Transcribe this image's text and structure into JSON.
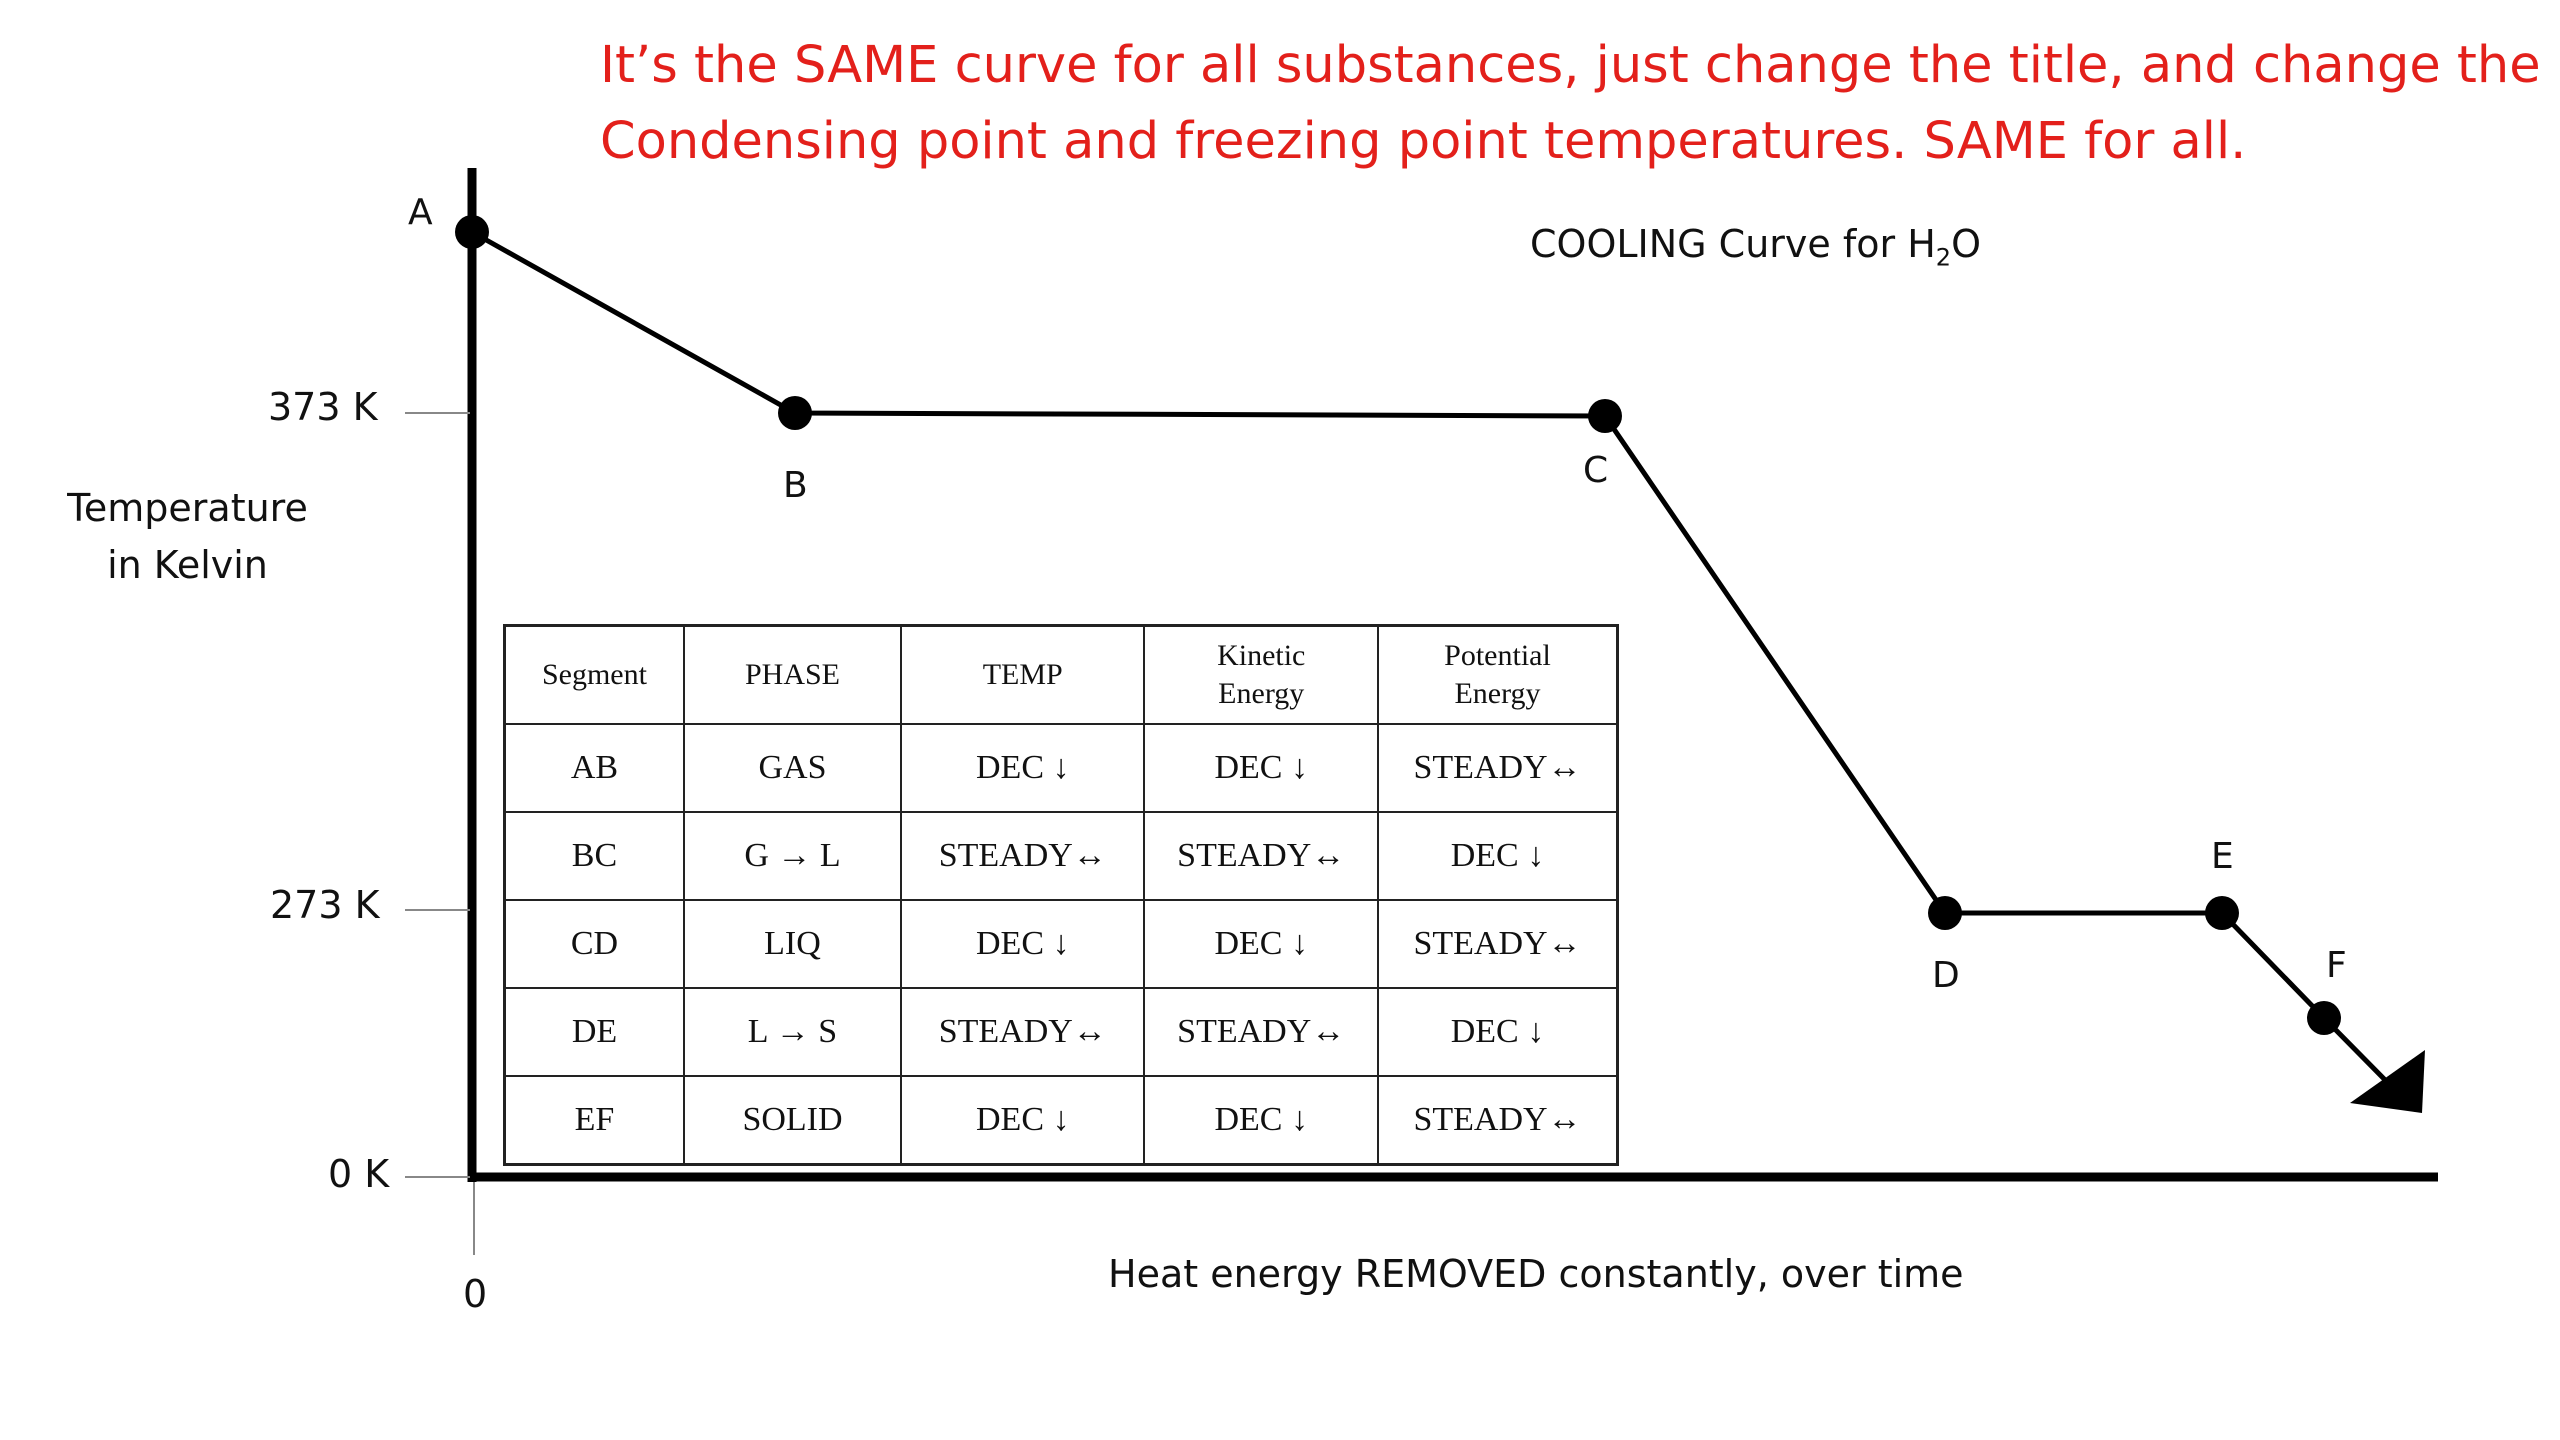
{
  "note": {
    "line1": "It’s the SAME curve for all substances, just change the title, and change the",
    "line2": "Condensing point and freezing point temperatures.  SAME for all."
  },
  "chart": {
    "title_prefix": "COOLING Curve for H",
    "title_sub": "2",
    "title_suffix": "O",
    "ylabel_line1": "Temperature",
    "ylabel_line2": "in Kelvin",
    "xlabel": "Heat energy REMOVED constantly, over time",
    "ytick_373": "373 K",
    "ytick_273": "273 K",
    "ytick_0": "0 K",
    "xtick_0": "0"
  },
  "points": {
    "A": "A",
    "B": "B",
    "C": "C",
    "D": "D",
    "E": "E",
    "F": "F"
  },
  "table": {
    "headers": [
      "Segment",
      "PHASE",
      "TEMP",
      "Kinetic\nEnergy",
      "Potential\nEnergy"
    ],
    "rows": [
      [
        "AB",
        "GAS",
        "DEC ↓",
        "DEC ↓",
        "STEADY↔"
      ],
      [
        "BC",
        "G → L",
        "STEADY↔",
        "STEADY↔",
        "DEC ↓"
      ],
      [
        "CD",
        "LIQ",
        "DEC ↓",
        "DEC ↓",
        "STEADY↔"
      ],
      [
        "DE",
        "L → S",
        "STEADY↔",
        "STEADY↔",
        "DEC ↓"
      ],
      [
        "EF",
        "SOLID",
        "DEC ↓",
        "DEC ↓",
        "STEADY↔"
      ]
    ]
  },
  "colors": {
    "note": "#e3201b",
    "line": "#000000"
  }
}
